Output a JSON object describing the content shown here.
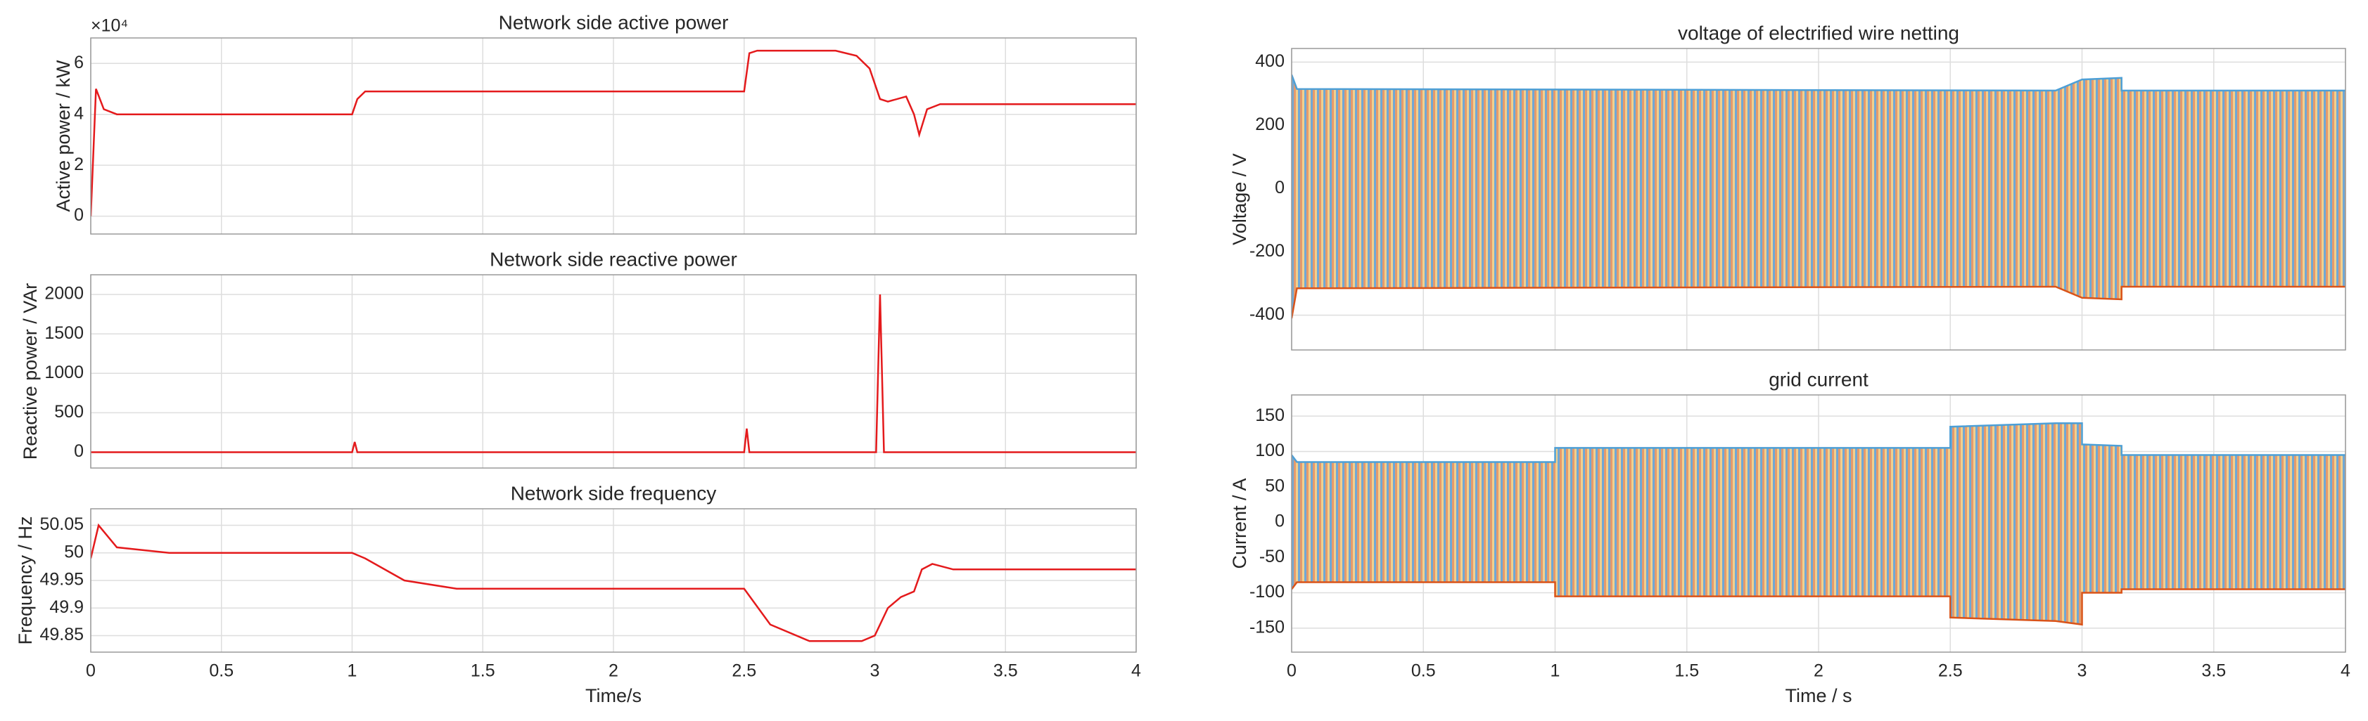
{
  "chart_data": [
    {
      "type": "line",
      "title": "Network side active power",
      "ylabel": "Active power / kW",
      "y_multiplier": "×10⁴",
      "x": [
        0,
        0.02,
        0.05,
        0.1,
        1.0,
        1.02,
        1.05,
        2.5,
        2.52,
        2.55,
        2.85,
        2.93,
        2.98,
        3.02,
        3.05,
        3.12,
        3.15,
        3.17,
        3.2,
        3.25,
        4
      ],
      "series": [
        {
          "color": "#e41a1c",
          "values": [
            0,
            5.0,
            4.2,
            4.0,
            4.0,
            4.6,
            4.9,
            4.9,
            6.4,
            6.5,
            6.5,
            6.3,
            5.8,
            4.6,
            4.5,
            4.7,
            4.0,
            3.2,
            4.2,
            4.4,
            4.4
          ]
        }
      ],
      "xlim": [
        0,
        4
      ],
      "xticks": [
        0,
        0.5,
        1,
        1.5,
        2,
        2.5,
        3,
        3.5,
        4
      ],
      "ylim": [
        -0.7,
        7
      ],
      "yticks": [
        0,
        2,
        4,
        6
      ],
      "grid": true
    },
    {
      "type": "line",
      "title": "Network side reactive power",
      "ylabel": "Reactive power / VAr",
      "x": [
        0,
        1.0,
        1.01,
        1.02,
        2.5,
        2.51,
        2.52,
        3.005,
        3.02,
        3.035,
        4
      ],
      "series": [
        {
          "color": "#e41a1c",
          "values": [
            0,
            0,
            130,
            0,
            0,
            300,
            0,
            0,
            2000,
            0,
            0
          ]
        }
      ],
      "xlim": [
        0,
        4
      ],
      "xticks": [
        0,
        0.5,
        1,
        1.5,
        2,
        2.5,
        3,
        3.5,
        4
      ],
      "ylim": [
        -200,
        2250
      ],
      "yticks": [
        0,
        500,
        1000,
        1500,
        2000
      ],
      "grid": true
    },
    {
      "type": "line",
      "title": "Network side frequency",
      "ylabel": "Frequency / Hz",
      "xlabel": "Time/s",
      "x": [
        0,
        0.03,
        0.1,
        0.3,
        1.0,
        1.05,
        1.2,
        1.4,
        2.5,
        2.6,
        2.75,
        2.95,
        3.0,
        3.05,
        3.1,
        3.15,
        3.18,
        3.22,
        3.3,
        4
      ],
      "series": [
        {
          "color": "#e41a1c",
          "values": [
            49.99,
            50.05,
            50.01,
            50.0,
            50.0,
            49.99,
            49.95,
            49.935,
            49.935,
            49.87,
            49.84,
            49.84,
            49.85,
            49.9,
            49.92,
            49.93,
            49.97,
            49.98,
            49.97,
            49.97
          ]
        }
      ],
      "xlim": [
        0,
        4
      ],
      "xticks": [
        0,
        0.5,
        1,
        1.5,
        2,
        2.5,
        3,
        3.5,
        4
      ],
      "ylim": [
        49.82,
        50.08
      ],
      "yticks": [
        49.85,
        49.9,
        49.95,
        50,
        50.05
      ],
      "grid": true
    },
    {
      "type": "area",
      "title": "voltage of electrified wire netting",
      "ylabel": "Voltage / V",
      "x": [
        0,
        0.02,
        2.9,
        3.0,
        3.15,
        3.15,
        4
      ],
      "series": [
        {
          "color": "#4d9fd6",
          "values": [
            360,
            315,
            310,
            345,
            350,
            310,
            310
          ]
        },
        {
          "color": "#d95319",
          "values": [
            -410,
            -315,
            -310,
            -345,
            -350,
            -310,
            -310
          ]
        }
      ],
      "xlim": [
        0,
        4
      ],
      "xticks": [
        0,
        0.5,
        1,
        1.5,
        2,
        2.5,
        3,
        3.5,
        4
      ],
      "ylim": [
        -510,
        443
      ],
      "yticks": [
        -400,
        -200,
        0,
        200,
        400
      ],
      "grid": true
    },
    {
      "type": "area",
      "title": "grid current",
      "ylabel": "Current / A",
      "xlabel": "Time / s",
      "x": [
        0,
        0.02,
        1.0,
        1.0,
        2.5,
        2.5,
        2.9,
        3.0,
        3.0,
        3.15,
        3.15,
        4
      ],
      "series": [
        {
          "color": "#4d9fd6",
          "values": [
            95,
            85,
            85,
            105,
            105,
            135,
            140,
            140,
            110,
            108,
            95,
            95
          ]
        },
        {
          "color": "#d95319",
          "values": [
            -95,
            -85,
            -85,
            -105,
            -105,
            -135,
            -140,
            -145,
            -100,
            -100,
            -95,
            -95
          ]
        }
      ],
      "xlim": [
        0,
        4
      ],
      "xticks": [
        0,
        0.5,
        1,
        1.5,
        2,
        2.5,
        3,
        3.5,
        4
      ],
      "ylim": [
        -184,
        180
      ],
      "yticks": [
        -150,
        -100,
        -50,
        0,
        50,
        100,
        150
      ],
      "grid": true
    }
  ]
}
